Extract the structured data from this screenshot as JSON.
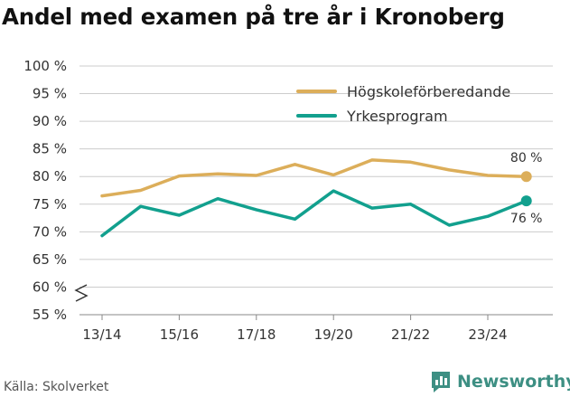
{
  "title": "Andel med examen på tre år i Kronoberg",
  "source": "Källa: Skolverket",
  "brand": {
    "name": "Newsworthy",
    "icon": "newsworthy-logo-icon"
  },
  "colors": {
    "hogskole": "#dcae5a",
    "yrke": "#12a08e",
    "grid": "#cccccc",
    "text": "#333333"
  },
  "chart_data": {
    "type": "line",
    "x": [
      "13/14",
      "14/15",
      "15/16",
      "16/17",
      "17/18",
      "18/19",
      "19/20",
      "20/21",
      "21/22",
      "22/23",
      "23/24",
      "24/25"
    ],
    "xtick_labels": [
      "13/14",
      "15/16",
      "17/18",
      "19/20",
      "21/22",
      "23/24"
    ],
    "yticks": [
      55,
      60,
      65,
      70,
      75,
      80,
      85,
      90,
      95,
      100
    ],
    "ytick_labels": [
      "55 %",
      "60 %",
      "65 %",
      "70 %",
      "75 %",
      "80 %",
      "85 %",
      "90 %",
      "95 %",
      "100 %"
    ],
    "ylim": [
      55,
      100
    ],
    "y_axis_break": true,
    "grid": true,
    "legend": "top-right",
    "series": [
      {
        "name": "Högskoleförberedande",
        "color": "#dcae5a",
        "values": [
          76.5,
          77.5,
          80.1,
          80.5,
          80.2,
          82.2,
          80.3,
          83.0,
          82.6,
          81.2,
          80.2,
          80.0
        ],
        "end_label": "80 %"
      },
      {
        "name": "Yrkesprogram",
        "color": "#12a08e",
        "values": [
          69.3,
          74.6,
          73.0,
          76.0,
          74.0,
          72.3,
          77.4,
          74.3,
          75.0,
          71.2,
          72.8,
          75.6
        ],
        "end_label": "76 %"
      }
    ]
  }
}
